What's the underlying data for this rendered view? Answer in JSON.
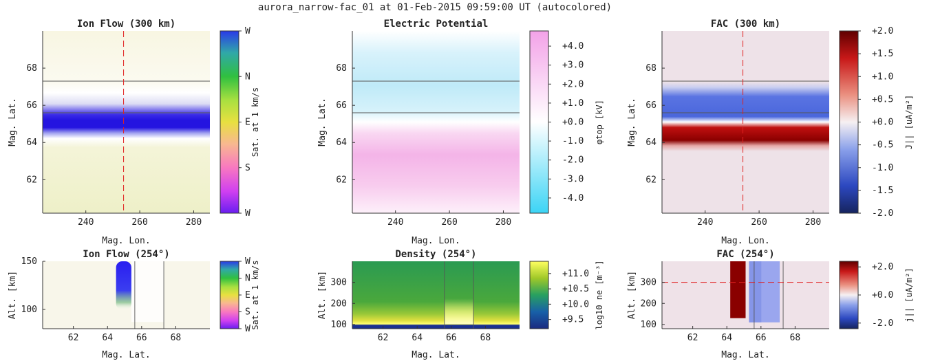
{
  "figure_title": "aurora_narrow-fac_01 at 01-Feb-2015 09:59:00 UT (autocolored)",
  "colors": {
    "ion_blue": "#2a1ef0",
    "potential_pink": "#f2a6e8",
    "potential_cyan": "#46d6f5",
    "fac_red": "#8b0000",
    "fac_blue": "#3c5cd8",
    "fac_bg": "#efe2e8",
    "cut_line": "#e02020",
    "density_high": "#ffff80",
    "density_low": "#1e3c8c"
  },
  "chart_data": [
    {
      "id": "ion_flow_map",
      "type": "heatmap",
      "title": "Ion Flow (300 km)",
      "xlabel": "Mag. Lon.",
      "ylabel": "Mag. Lat.",
      "xlim": [
        224,
        286
      ],
      "ylim": [
        60.2,
        70
      ],
      "xticks": [
        240,
        260,
        280
      ],
      "yticks": [
        62,
        64,
        66,
        68
      ],
      "features": {
        "blue_band_lat": [
          64.6,
          65.5
        ],
        "flow_label": "Sat. at 1 km/s"
      },
      "hlines": [
        65.6,
        67.3
      ],
      "vline_dashed": 254,
      "colorbar": {
        "label": "Sat. at 1 km/s",
        "ticks": [
          "W",
          "N",
          "E",
          "S",
          "W"
        ]
      }
    },
    {
      "id": "potential_map",
      "type": "heatmap",
      "title": "Electric Potential",
      "xlabel": "Mag. Lon.",
      "ylabel": "Mag. Lat.",
      "xlim": [
        224,
        286
      ],
      "ylim": [
        60.2,
        70
      ],
      "xticks": [
        240,
        260,
        280
      ],
      "yticks": [
        62,
        64,
        66,
        68
      ],
      "hlines": [
        65.6,
        67.3
      ],
      "colorbar": {
        "label": "φtop [kV]",
        "range": [
          -4.8,
          4.8
        ],
        "ticks": [
          "+4.0",
          "+3.0",
          "+2.0",
          "+1.0",
          "+0.0",
          "-1.0",
          "-2.0",
          "-3.0",
          "-4.0"
        ],
        "tick_values": [
          4,
          3,
          2,
          1,
          0,
          -1,
          -2,
          -3,
          -4
        ]
      }
    },
    {
      "id": "fac_map",
      "type": "heatmap",
      "title": "FAC (300 km)",
      "xlabel": "Mag. Lon.",
      "ylabel": "Mag. Lat.",
      "xlim": [
        224,
        286
      ],
      "ylim": [
        60.2,
        70
      ],
      "xticks": [
        240,
        260,
        280
      ],
      "yticks": [
        62,
        64,
        66,
        68
      ],
      "features": {
        "upward_band_lat": [
          64.3,
          65.2
        ],
        "downward_band_lat": [
          65.3,
          67.2
        ]
      },
      "hlines": [
        65.6,
        67.3
      ],
      "vline_dashed": 254,
      "colorbar": {
        "label": "J|| [uA/m²]",
        "range": [
          -2,
          2
        ],
        "ticks": [
          "+2.0",
          "+1.5",
          "+1.0",
          "+0.5",
          "+0.0",
          "-0.5",
          "-1.0",
          "-1.5",
          "-2.0"
        ],
        "tick_values": [
          2,
          1.5,
          1,
          0.5,
          0,
          -0.5,
          -1,
          -1.5,
          -2
        ]
      }
    },
    {
      "id": "ion_flow_alt",
      "type": "heatmap",
      "title": "Ion Flow (254°)",
      "xlabel": "Mag. Lat.",
      "ylabel": "Alt. [km]",
      "xlim": [
        60.2,
        70
      ],
      "ylim": [
        80,
        150
      ],
      "xticks": [
        62,
        64,
        66,
        68
      ],
      "yticks": [
        100,
        150
      ],
      "vlines": [
        65.6,
        67.3
      ],
      "colorbar": {
        "label": "Sat. at 1 km/s",
        "ticks": [
          "W",
          "N",
          "E",
          "S",
          "W"
        ]
      }
    },
    {
      "id": "density_alt",
      "type": "heatmap",
      "title": "Density (254°)",
      "xlabel": "Mag. Lat.",
      "ylabel": "Alt. [km]",
      "xlim": [
        60.2,
        70
      ],
      "ylim": [
        80,
        400
      ],
      "xticks": [
        62,
        64,
        66,
        68
      ],
      "yticks": [
        100,
        200,
        300
      ],
      "vlines": [
        65.6,
        67.3
      ],
      "colorbar": {
        "label": "log10 ne [m⁻³]",
        "range": [
          9.2,
          11.4
        ],
        "ticks": [
          "+11.0",
          "+10.5",
          "+10.0",
          "+9.5"
        ],
        "tick_values": [
          11,
          10.5,
          10,
          9.5
        ]
      }
    },
    {
      "id": "fac_alt",
      "type": "heatmap",
      "title": "FAC (254°)",
      "xlabel": "Mag. Lat.",
      "ylabel": "Alt. [km]",
      "xlim": [
        60.2,
        70
      ],
      "ylim": [
        80,
        400
      ],
      "xticks": [
        62,
        64,
        66,
        68
      ],
      "yticks": [
        100,
        200,
        300
      ],
      "vlines": [
        65.6,
        67.3
      ],
      "hline_dashed": 300,
      "colorbar": {
        "label": "j|| [uA/m²]",
        "range": [
          -2.4,
          2.4
        ],
        "ticks": [
          "+2.0",
          "+0.0",
          "-2.0"
        ],
        "tick_values": [
          2,
          0,
          -2
        ]
      }
    }
  ]
}
